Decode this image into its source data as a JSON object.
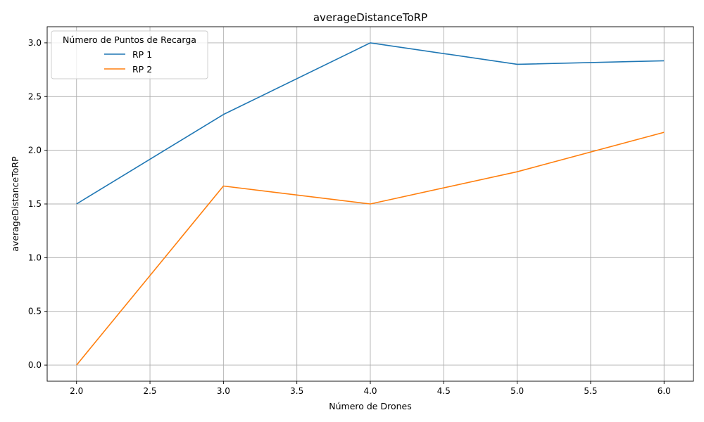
{
  "chart_data": {
    "type": "line",
    "title": "averageDistanceToRP",
    "xlabel": "Número de Drones",
    "ylabel": "averageDistanceToRP",
    "x": [
      2,
      3,
      4,
      5,
      6
    ],
    "xlim": [
      1.8,
      6.2
    ],
    "ylim": [
      -0.15,
      3.15
    ],
    "xticks": [
      2.0,
      2.5,
      3.0,
      3.5,
      4.0,
      4.5,
      5.0,
      5.5,
      6.0
    ],
    "yticks": [
      0.0,
      0.5,
      1.0,
      1.5,
      2.0,
      2.5,
      3.0
    ],
    "xtick_labels": [
      "2.0",
      "2.5",
      "3.0",
      "3.5",
      "4.0",
      "4.5",
      "5.0",
      "5.5",
      "6.0"
    ],
    "ytick_labels": [
      "0.0",
      "0.5",
      "1.0",
      "1.5",
      "2.0",
      "2.5",
      "3.0"
    ],
    "grid": true,
    "legend": {
      "title": "Número de Puntos de Recarga",
      "placement": "top-left"
    },
    "series": [
      {
        "name": "RP 1",
        "color": "#1f77b4",
        "values": [
          1.5,
          2.333,
          3.0,
          2.8,
          2.833
        ]
      },
      {
        "name": "RP 2",
        "color": "#ff7f0e",
        "values": [
          0.0,
          1.667,
          1.5,
          1.8,
          2.167
        ]
      }
    ]
  }
}
